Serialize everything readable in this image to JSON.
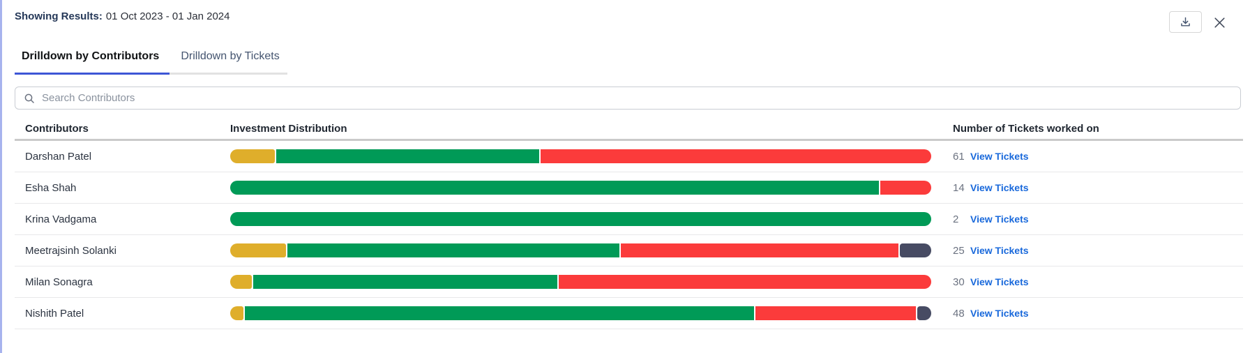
{
  "header": {
    "showing_label": "Showing Results:",
    "date_range": "01 Oct 2023 - 01 Jan 2024"
  },
  "tabs": [
    {
      "label": "Drilldown by Contributors",
      "active": true
    },
    {
      "label": "Drilldown by Tickets",
      "active": false
    }
  ],
  "search": {
    "placeholder": "Search Contributors",
    "value": ""
  },
  "table": {
    "columns": [
      "Contributors",
      "Investment Distribution",
      "Number of Tickets worked on"
    ],
    "view_link_label": "View Tickets",
    "rows": [
      {
        "name": "Darshan Patel",
        "tickets": "61",
        "segments": [
          {
            "color": "yellow",
            "pct": 6.4
          },
          {
            "color": "green",
            "pct": 37.7
          },
          {
            "color": "red",
            "pct": 55.9
          }
        ]
      },
      {
        "name": "Esha Shah",
        "tickets": "14",
        "segments": [
          {
            "color": "green",
            "pct": 92.7
          },
          {
            "color": "red",
            "pct": 7.3
          }
        ]
      },
      {
        "name": "Krina Vadgama",
        "tickets": "2",
        "segments": [
          {
            "color": "green",
            "pct": 100
          }
        ]
      },
      {
        "name": "Meetrajsinh Solanki",
        "tickets": "25",
        "segments": [
          {
            "color": "yellow",
            "pct": 8.0
          },
          {
            "color": "green",
            "pct": 47.7
          },
          {
            "color": "red",
            "pct": 39.8
          },
          {
            "color": "dark",
            "pct": 4.5
          }
        ]
      },
      {
        "name": "Milan Sonagra",
        "tickets": "30",
        "segments": [
          {
            "color": "yellow",
            "pct": 3.1
          },
          {
            "color": "green",
            "pct": 43.6
          },
          {
            "color": "red",
            "pct": 53.3
          }
        ]
      },
      {
        "name": "Nishith Patel",
        "tickets": "48",
        "segments": [
          {
            "color": "yellow",
            "pct": 1.9
          },
          {
            "color": "green",
            "pct": 73.1
          },
          {
            "color": "red",
            "pct": 23.0
          },
          {
            "color": "dark",
            "pct": 2.0
          }
        ]
      }
    ]
  },
  "colors": {
    "yellow": "#DFAE2B",
    "green": "#009A57",
    "red": "#FB3B3B",
    "dark": "#474B63",
    "active_tab_underline": "#3D56D6",
    "link_blue": "#1868DB"
  }
}
